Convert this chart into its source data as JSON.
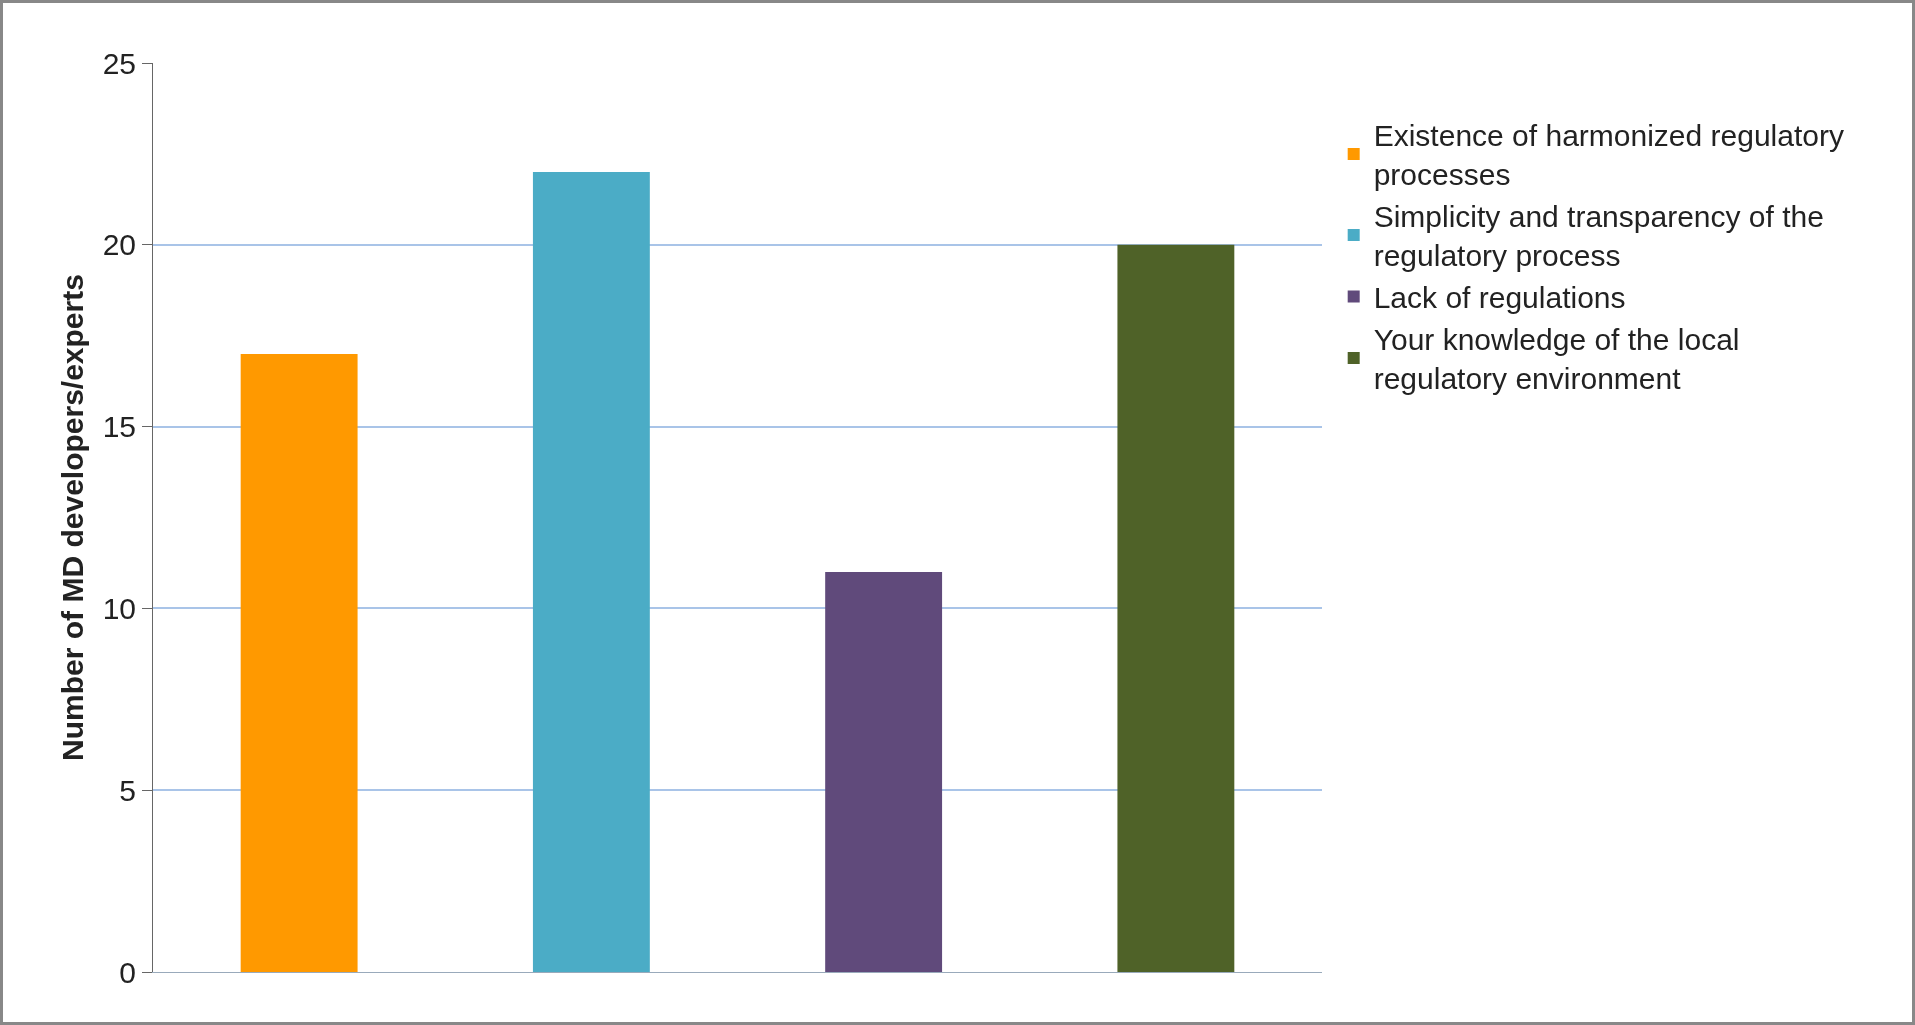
{
  "chart_data": {
    "type": "bar",
    "ylabel": "Number of MD developers/experts",
    "categories": [
      null,
      null,
      null,
      null
    ],
    "series": [
      {
        "name": "Existence of harmonized regulatory processes",
        "color": "#ff9900",
        "values": [
          17,
          null,
          null,
          null
        ]
      },
      {
        "name": "Simplicity and transparency of the regulatory process",
        "color": "#4bacc6",
        "values": [
          null,
          22,
          null,
          null
        ]
      },
      {
        "name": "Lack of regulations",
        "color": "#604a7b",
        "values": [
          null,
          null,
          11,
          null
        ]
      },
      {
        "name": "Your knowledge of the local regulatory environment",
        "color": "#4f6228",
        "values": [
          null,
          null,
          null,
          20
        ]
      }
    ],
    "ylim": [
      0,
      25
    ],
    "yticks": [
      0,
      5,
      10,
      15,
      20,
      25
    ],
    "grid": "y",
    "legend": "right"
  }
}
